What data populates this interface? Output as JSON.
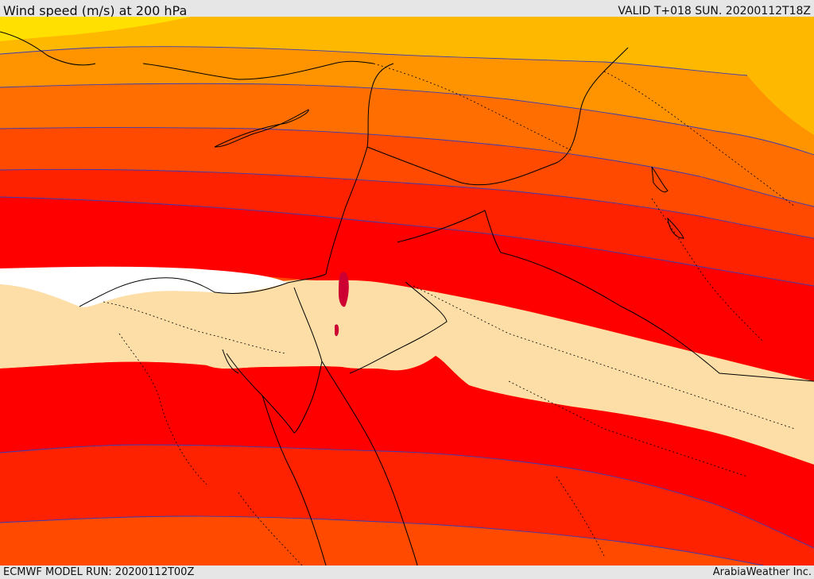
{
  "header": {
    "title": "Wind speed (m/s) at 200 hPa",
    "valid_time": "VALID T+018 SUN. 20200112T18Z"
  },
  "footer": {
    "model_run": "ECMWF MODEL RUN: 20200112T00Z",
    "credit": "ArabiaWeather Inc."
  },
  "map": {
    "variable": "wind speed",
    "units": "m/s",
    "level_hpa": 200,
    "colors": {
      "band_lightest": "#FFE000",
      "band_1": "#FFB800",
      "band_2": "#FF9400",
      "band_3": "#FF6E00",
      "band_4": "#FF4A00",
      "band_5": "#FF2200",
      "band_6": "#FF0000",
      "jet_core": "#CC0033",
      "calm_pale": "#FCDEA6",
      "below_threshold": "#FFFFFF",
      "contour_line": "#3B3BB3",
      "border_line": "#000000"
    }
  }
}
